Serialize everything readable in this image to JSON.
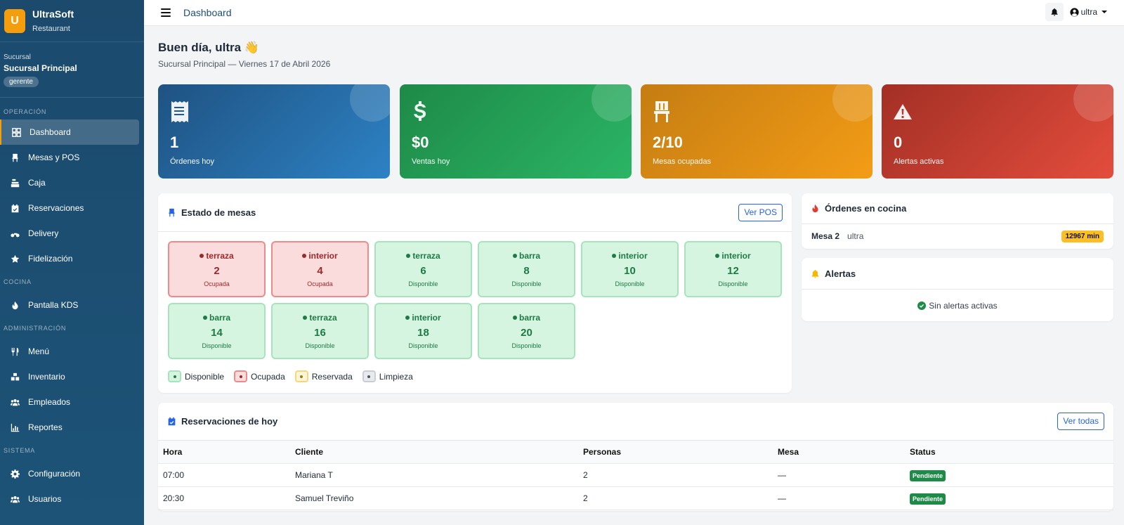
{
  "brand": {
    "logo_letter": "U",
    "name": "UltraSoft",
    "sub": "Restaurant"
  },
  "branch": {
    "label": "Sucursal",
    "name": "Sucursal Principal",
    "role": "gerente"
  },
  "sidebar": {
    "sections": {
      "operacion": "OPERACIÓN",
      "cocina": "COCINA",
      "administracion": "ADMINISTRACIÓN",
      "sistema": "SISTEMA"
    },
    "items": {
      "dashboard": "Dashboard",
      "mesas": "Mesas y POS",
      "caja": "Caja",
      "reservaciones": "Reservaciones",
      "delivery": "Delivery",
      "fidelizacion": "Fidelización",
      "kds": "Pantalla KDS",
      "menu": "Menú",
      "inventario": "Inventario",
      "empleados": "Empleados",
      "reportes": "Reportes",
      "configuracion": "Configuración",
      "usuarios": "Usuarios"
    }
  },
  "topbar": {
    "title": "Dashboard",
    "user": "ultra"
  },
  "greeting": {
    "title": "Buen día, ultra 👋",
    "subtitle": "Sucursal Principal — Viernes 17 de Abril 2026"
  },
  "stats": {
    "ordenes": {
      "value": "1",
      "label": "Órdenes hoy"
    },
    "ventas": {
      "value": "$0",
      "label": "Ventas hoy"
    },
    "mesas": {
      "value": "2/10",
      "label": "Mesas ocupadas"
    },
    "alertas": {
      "value": "0",
      "label": "Alertas activas"
    }
  },
  "mesas_panel": {
    "title": "Estado de mesas",
    "button": "Ver POS",
    "tables": [
      {
        "zone": "terraza",
        "number": "2",
        "status": "Ocupada"
      },
      {
        "zone": "interior",
        "number": "4",
        "status": "Ocupada"
      },
      {
        "zone": "terraza",
        "number": "6",
        "status": "Disponible"
      },
      {
        "zone": "barra",
        "number": "8",
        "status": "Disponible"
      },
      {
        "zone": "interior",
        "number": "10",
        "status": "Disponible"
      },
      {
        "zone": "interior",
        "number": "12",
        "status": "Disponible"
      },
      {
        "zone": "barra",
        "number": "14",
        "status": "Disponible"
      },
      {
        "zone": "terraza",
        "number": "16",
        "status": "Disponible"
      },
      {
        "zone": "interior",
        "number": "18",
        "status": "Disponible"
      },
      {
        "zone": "barra",
        "number": "20",
        "status": "Disponible"
      }
    ],
    "legend": {
      "disponible": "Disponible",
      "ocupada": "Ocupada",
      "reservada": "Reservada",
      "limpieza": "Limpieza"
    }
  },
  "cocina_panel": {
    "title": "Órdenes en cocina",
    "order": {
      "mesa": "Mesa 2",
      "user": "ultra",
      "time": "12967 min"
    }
  },
  "alertas_panel": {
    "title": "Alertas",
    "empty": "Sin alertas activas"
  },
  "reservaciones_panel": {
    "title": "Reservaciones de hoy",
    "button": "Ver todas",
    "columns": {
      "hora": "Hora",
      "cliente": "Cliente",
      "personas": "Personas",
      "mesa": "Mesa",
      "status": "Status"
    },
    "rows": [
      {
        "hora": "07:00",
        "cliente": "Mariana T",
        "personas": "2",
        "mesa": "—",
        "status": "Pendiente"
      },
      {
        "hora": "20:30",
        "cliente": "Samuel Treviño",
        "personas": "2",
        "mesa": "—",
        "status": "Pendiente"
      }
    ]
  },
  "colors": {
    "sidebar": "#1b4a6d",
    "accent": "#f59e0b",
    "primary_link": "#2563eb",
    "available": "#d6f5e1",
    "occupied": "#fbdcdc",
    "pending_badge": "#1e8a48"
  }
}
